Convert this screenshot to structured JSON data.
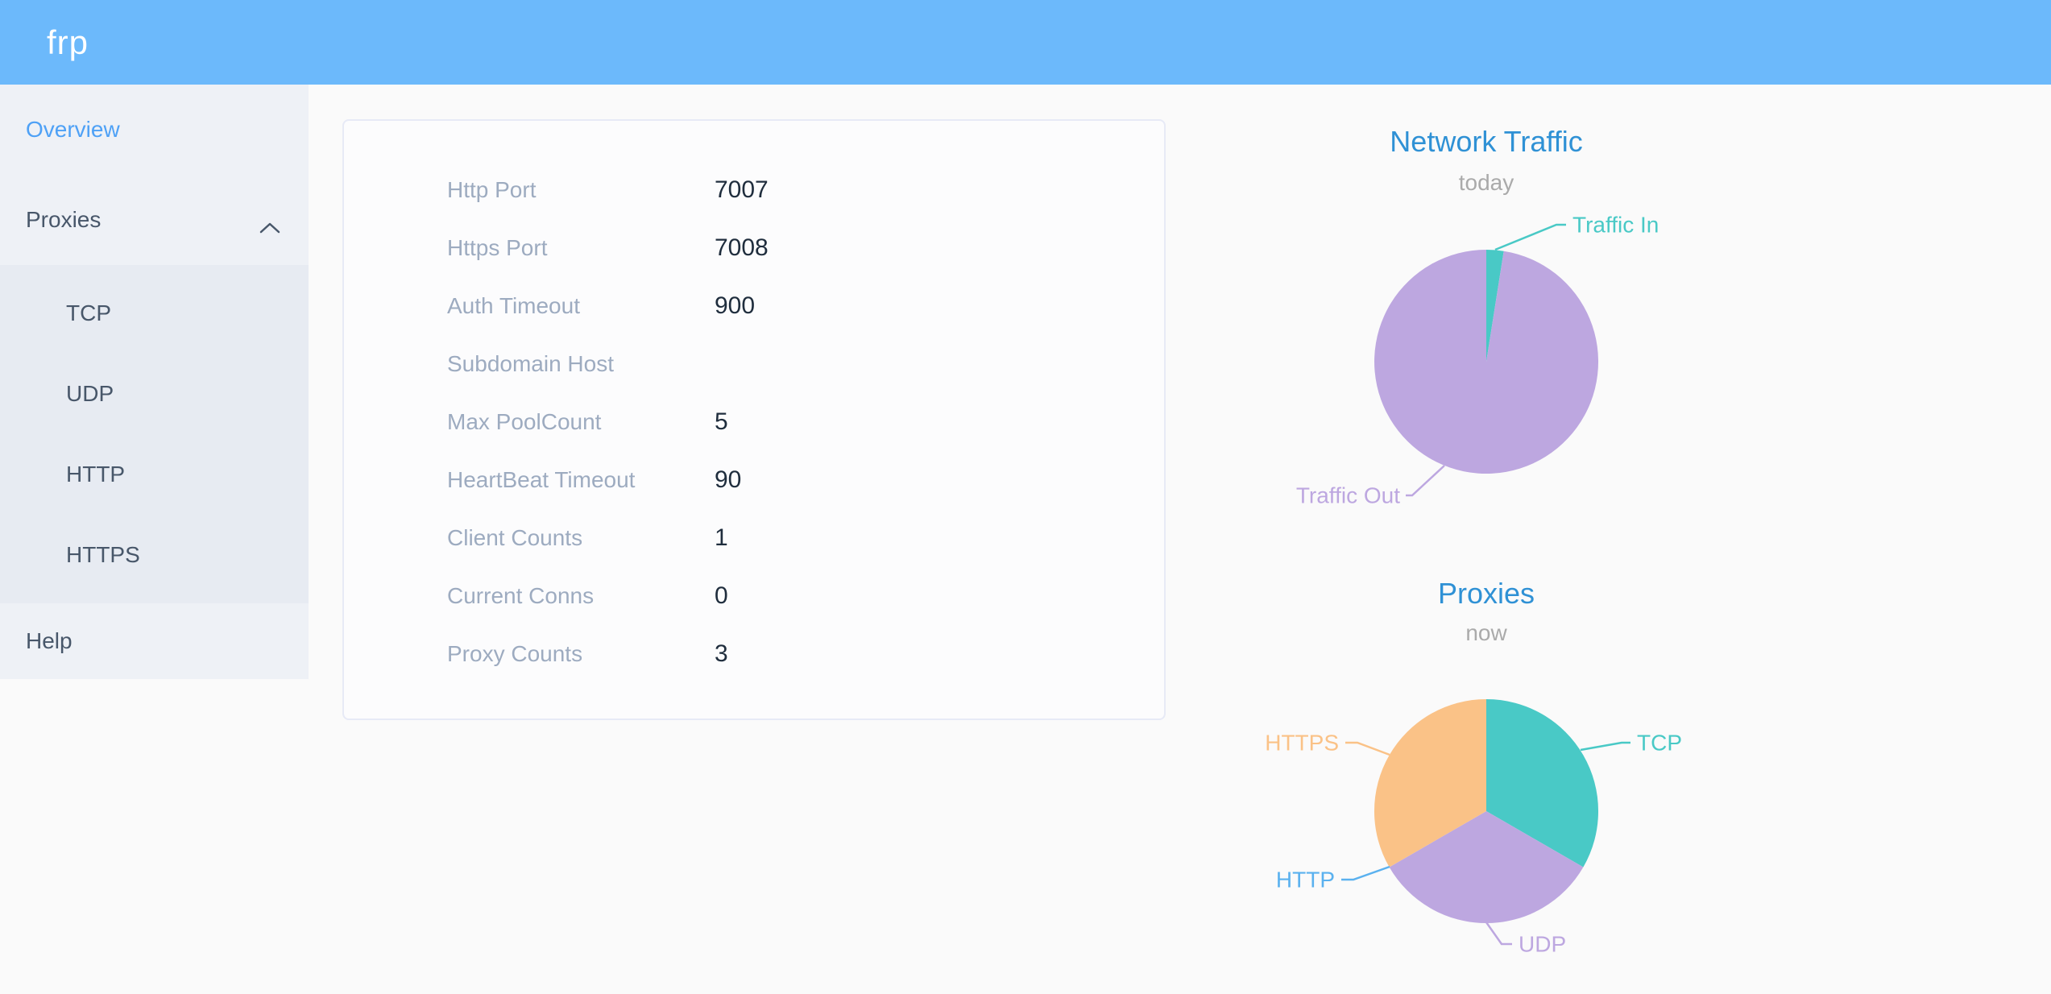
{
  "header": {
    "logo": "frp"
  },
  "sidebar": {
    "items": [
      {
        "label": "Overview",
        "active": true
      },
      {
        "label": "Proxies",
        "expanded": true,
        "children": [
          "TCP",
          "UDP",
          "HTTP",
          "HTTPS"
        ]
      },
      {
        "label": "Help"
      }
    ]
  },
  "overview_card": {
    "rows": [
      {
        "label": "Http Port",
        "value": "7007"
      },
      {
        "label": "Https Port",
        "value": "7008"
      },
      {
        "label": "Auth Timeout",
        "value": "900"
      },
      {
        "label": "Subdomain Host",
        "value": ""
      },
      {
        "label": "Max PoolCount",
        "value": "5"
      },
      {
        "label": "HeartBeat Timeout",
        "value": "90"
      },
      {
        "label": "Client Counts",
        "value": "1"
      },
      {
        "label": "Current Conns",
        "value": "0"
      },
      {
        "label": "Proxy Counts",
        "value": "3"
      }
    ]
  },
  "colors": {
    "header_bg": "#6cb9fb",
    "sidebar_bg": "#eef1f6",
    "submenu_bg": "#e7ebf2",
    "active_menu": "#4ea1f6",
    "menu_text": "#48576a",
    "chart_title": "#2f91d5",
    "chart_subtitle": "#aaaaaa",
    "teal": "#49c9c6",
    "purple": "#bda7e0",
    "orange": "#fac287",
    "http_blue": "#5ab1ef"
  },
  "chart_data": [
    {
      "type": "pie",
      "title": "Network Traffic",
      "subtitle": "today",
      "legend_position": "callout-labels",
      "note": "values are percent shares estimated from slice angles",
      "series": [
        {
          "name": "Traffic In",
          "value": 2.5,
          "color": "#49c9c6"
        },
        {
          "name": "Traffic Out",
          "value": 97.5,
          "color": "#bda7e0"
        }
      ]
    },
    {
      "type": "pie",
      "title": "Proxies",
      "subtitle": "now",
      "legend_position": "callout-labels",
      "note": "counts of proxies by type; HTTP slice is zero-width but still labeled",
      "series": [
        {
          "name": "TCP",
          "value": 1,
          "color": "#49c9c6"
        },
        {
          "name": "UDP",
          "value": 1,
          "color": "#bda7e0"
        },
        {
          "name": "HTTP",
          "value": 0,
          "color": "#5ab1ef"
        },
        {
          "name": "HTTPS",
          "value": 1,
          "color": "#fac287"
        }
      ]
    }
  ]
}
